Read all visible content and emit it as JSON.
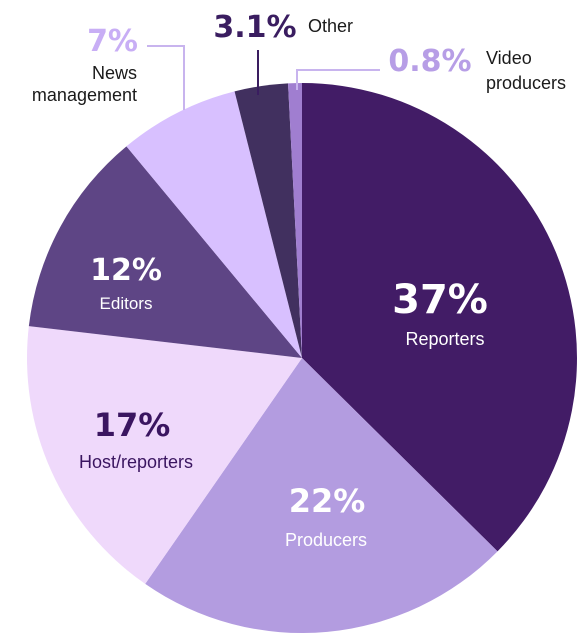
{
  "chart_data": {
    "type": "pie",
    "start_angle_deg": 0,
    "direction": "clockwise",
    "slices": [
      {
        "label": "Reporters",
        "value": 37,
        "display": "37%",
        "color": "#421c66",
        "label_position": "inside",
        "text_color": "#ffffff"
      },
      {
        "label": "Producers",
        "value": 22,
        "display": "22%",
        "color": "#b39ce0",
        "label_position": "inside",
        "text_color": "#ffffff"
      },
      {
        "label": "Host/reporters",
        "value": 17,
        "display": "17%",
        "color": "#efd9fb",
        "label_position": "inside",
        "text_color": "#3a1560"
      },
      {
        "label": "Editors",
        "value": 12,
        "display": "12%",
        "color": "#5e4585",
        "label_position": "inside",
        "text_color": "#ffffff"
      },
      {
        "label": "News management",
        "value": 7,
        "display": "7%",
        "color": "#d8c0ff",
        "label_position": "outside",
        "text_color": "#1a1a1a",
        "pct_color": "#c8aef5"
      },
      {
        "label": "Other",
        "value": 3.1,
        "display": "3.1%",
        "color": "#41305f",
        "label_position": "outside",
        "text_color": "#1a1a1a",
        "pct_color": "#3a1d60"
      },
      {
        "label": "Video producers",
        "value": 0.8,
        "display": "0.8%",
        "color": "#a07ed0",
        "label_position": "outside",
        "text_color": "#1a1a1a",
        "pct_color": "#b79ee6"
      }
    ],
    "title": "",
    "legend": "none"
  }
}
